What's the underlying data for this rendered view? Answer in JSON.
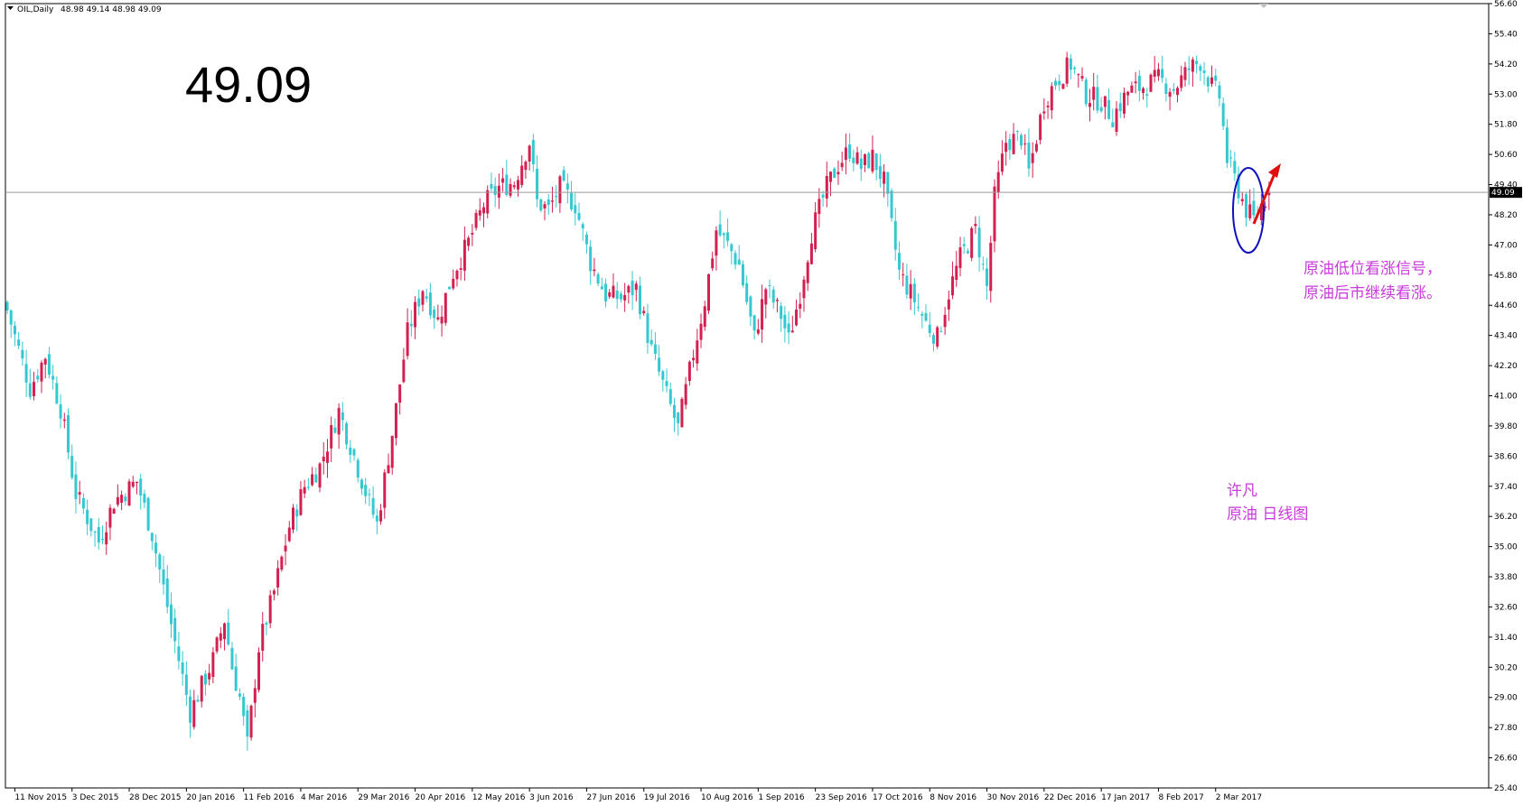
{
  "header": {
    "symbol": "OIL,Daily",
    "ohlc": "48.98 49.14 48.98 49.09"
  },
  "big_price": "49.09",
  "current_price_label": "49.09",
  "annotation_signal": [
    "原油低位看涨信号，",
    "原油后市继续看涨。"
  ],
  "annotation_author": [
    "许凡",
    "原油  日线图"
  ],
  "colors": {
    "bull": "#d42050",
    "bear": "#35c8d0",
    "annotation": "#c93adc",
    "circle": "#1010c0",
    "arrow": "#e01010",
    "grid_line": "#9a9a9a"
  },
  "chart_data": {
    "type": "candlestick",
    "title": "OIL,Daily",
    "ylim": [
      25.4,
      56.6
    ],
    "y_ticks": [
      "56.60",
      "55.40",
      "54.20",
      "53.00",
      "51.80",
      "50.60",
      "49.40",
      "48.20",
      "47.00",
      "45.80",
      "44.60",
      "43.40",
      "42.20",
      "41.00",
      "39.80",
      "38.60",
      "37.40",
      "36.20",
      "35.00",
      "33.80",
      "32.60",
      "31.40",
      "30.20",
      "29.00",
      "27.80",
      "26.60",
      "25.40"
    ],
    "x_labels": [
      "11 Nov 2015",
      "3 Dec 2015",
      "28 Dec 2015",
      "20 Jan 2016",
      "11 Feb 2016",
      "4 Mar 2016",
      "29 Mar 2016",
      "20 Apr 2016",
      "12 May 2016",
      "3 Jun 2016",
      "27 Jun 2016",
      "19 Jul 2016",
      "10 Aug 2016",
      "1 Sep 2016",
      "23 Sep 2016",
      "17 Oct 2016",
      "8 Nov 2016",
      "30 Nov 2016",
      "22 Dec 2016",
      "17 Jan 2017",
      "8 Feb 2017",
      "2 Mar 2017"
    ],
    "x_label_index": [
      2,
      17,
      32,
      47,
      62,
      77,
      92,
      107,
      122,
      137,
      152,
      167,
      182,
      197,
      212,
      227,
      242,
      257,
      272,
      287,
      302,
      317
    ],
    "close_path": [
      [
        0,
        44.4
      ],
      [
        6,
        41.3
      ],
      [
        10,
        42.6
      ],
      [
        14,
        40.5
      ],
      [
        18,
        37.1
      ],
      [
        24,
        35.2
      ],
      [
        28,
        36.8
      ],
      [
        34,
        37.6
      ],
      [
        38,
        35.5
      ],
      [
        44,
        31.2
      ],
      [
        48,
        28.4
      ],
      [
        54,
        30.5
      ],
      [
        57,
        32.1
      ],
      [
        59,
        30.2
      ],
      [
        61,
        29.0
      ],
      [
        63,
        27.1
      ],
      [
        66,
        31.0
      ],
      [
        70,
        33.2
      ],
      [
        74,
        35.8
      ],
      [
        78,
        37.4
      ],
      [
        82,
        38.2
      ],
      [
        87,
        40.4
      ],
      [
        91,
        38.6
      ],
      [
        95,
        36.7
      ],
      [
        97,
        35.9
      ],
      [
        101,
        39.5
      ],
      [
        105,
        43.5
      ],
      [
        109,
        45.3
      ],
      [
        113,
        44.0
      ],
      [
        117,
        45.9
      ],
      [
        121,
        47.1
      ],
      [
        125,
        48.6
      ],
      [
        129,
        49.3
      ],
      [
        133,
        49.5
      ],
      [
        137,
        51.1
      ],
      [
        139,
        48.7
      ],
      [
        142,
        48.4
      ],
      [
        145,
        49.3
      ],
      [
        149,
        48.6
      ],
      [
        153,
        46.3
      ],
      [
        157,
        45.0
      ],
      [
        161,
        44.9
      ],
      [
        165,
        45.3
      ],
      [
        169,
        42.8
      ],
      [
        173,
        41.0
      ],
      [
        176,
        39.7
      ],
      [
        180,
        42.7
      ],
      [
        183,
        44.8
      ],
      [
        186,
        47.6
      ],
      [
        189,
        47.0
      ],
      [
        192,
        46.2
      ],
      [
        196,
        43.3
      ],
      [
        199,
        45.3
      ],
      [
        203,
        44.2
      ],
      [
        205,
        43.2
      ],
      [
        208,
        45.1
      ],
      [
        211,
        47.5
      ],
      [
        215,
        49.3
      ],
      [
        218,
        50.2
      ],
      [
        221,
        50.8
      ],
      [
        224,
        50.1
      ],
      [
        227,
        50.5
      ],
      [
        230,
        49.5
      ],
      [
        234,
        45.9
      ],
      [
        238,
        44.8
      ],
      [
        241,
        43.9
      ],
      [
        244,
        43.3
      ],
      [
        247,
        45.1
      ],
      [
        250,
        46.5
      ],
      [
        254,
        47.6
      ],
      [
        257,
        45.3
      ],
      [
        259,
        48.9
      ],
      [
        262,
        51.1
      ],
      [
        266,
        51.3
      ],
      [
        268,
        49.9
      ],
      [
        272,
        52.7
      ],
      [
        275,
        53.5
      ],
      [
        279,
        54.2
      ],
      [
        283,
        53.0
      ],
      [
        287,
        52.7
      ],
      [
        290,
        52.1
      ],
      [
        294,
        53.1
      ],
      [
        298,
        53.3
      ],
      [
        302,
        53.6
      ],
      [
        306,
        53.2
      ],
      [
        310,
        54.0
      ],
      [
        313,
        54.3
      ],
      [
        316,
        53.3
      ],
      [
        318,
        52.9
      ],
      [
        320,
        50.4
      ],
      [
        323,
        49.2
      ],
      [
        325,
        48.4
      ],
      [
        327,
        48.0
      ],
      [
        329,
        48.6
      ],
      [
        331,
        49.09
      ]
    ]
  }
}
